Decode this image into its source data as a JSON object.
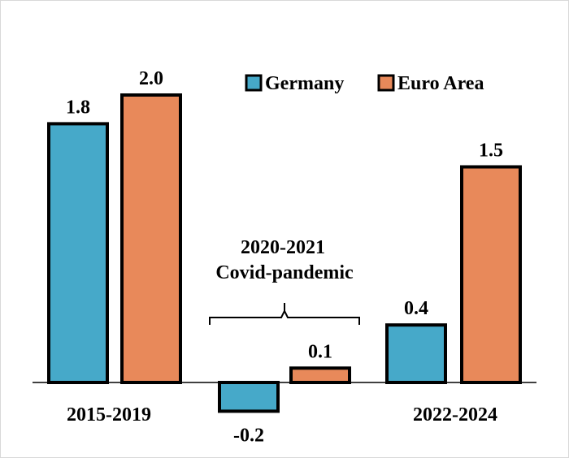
{
  "chart_data": {
    "type": "bar",
    "categories": [
      "2015-2019",
      "2020-2021",
      "2022-2024"
    ],
    "series": [
      {
        "name": "Germany",
        "color": "#46A9C9",
        "values": [
          1.8,
          -0.2,
          0.4
        ],
        "labels": [
          "1.8",
          "-0.2",
          "0.4"
        ]
      },
      {
        "name": "Euro Area",
        "color": "#E8895A",
        "values": [
          2.0,
          0.1,
          1.5
        ],
        "labels": [
          "2.0",
          "0.1",
          "1.5"
        ]
      }
    ],
    "category_labels": [
      "2015-2019",
      "",
      "2022-2024"
    ],
    "annotation": {
      "lines": [
        "2020-2021",
        "Covid-pandemic"
      ]
    },
    "legend_position": "top-right",
    "grid": false,
    "ylim": [
      -0.25,
      2.15
    ]
  }
}
